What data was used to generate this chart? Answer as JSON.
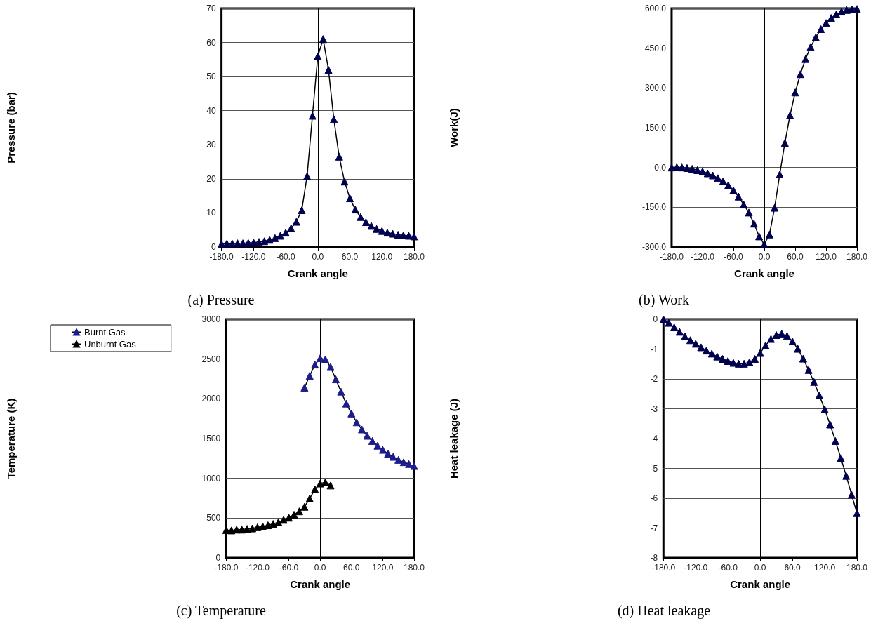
{
  "chart_data": [
    {
      "type": "line",
      "title": "(a) Pressure",
      "xlabel": "Crank angle",
      "ylabel": "Pressure (bar)",
      "marker": "triangle",
      "grid": "y",
      "legend": false,
      "xlim": [
        -180,
        180
      ],
      "xticks": [
        {
          "value": -180,
          "label": "-180.0"
        },
        {
          "value": -120,
          "label": "-120.0"
        },
        {
          "value": -60,
          "label": "-60.0"
        },
        {
          "value": 0,
          "label": "0.0"
        },
        {
          "value": 60,
          "label": "60.0"
        },
        {
          "value": 120,
          "label": "120.0"
        },
        {
          "value": 180,
          "label": "180.0"
        }
      ],
      "ylim": [
        0,
        70
      ],
      "yticks": [
        0,
        10,
        20,
        30,
        40,
        50,
        60,
        70
      ],
      "x": [
        -180,
        -170,
        -160,
        -150,
        -140,
        -130,
        -120,
        -110,
        -100,
        -90,
        -80,
        -70,
        -60,
        -50,
        -40,
        -30,
        -20,
        -10,
        0,
        10,
        20,
        30,
        40,
        50,
        60,
        70,
        80,
        90,
        100,
        110,
        120,
        130,
        140,
        150,
        160,
        170,
        180
      ],
      "series": [
        {
          "color": "#000050",
          "values": [
            0.9,
            1.0,
            1.0,
            1.1,
            1.1,
            1.2,
            1.3,
            1.5,
            1.7,
            2.1,
            2.6,
            3.3,
            4.2,
            5.5,
            7.4,
            10.8,
            20.8,
            38.5,
            56.0,
            61.0,
            52.0,
            37.5,
            26.5,
            19.2,
            14.3,
            11.0,
            8.8,
            7.3,
            6.2,
            5.3,
            4.7,
            4.2,
            3.9,
            3.6,
            3.4,
            3.3,
            3.1
          ]
        }
      ]
    },
    {
      "type": "line",
      "title": "(b) Work",
      "xlabel": "Crank angle",
      "ylabel": "Work(J)",
      "marker": "triangle",
      "grid": "y",
      "legend": false,
      "xlim": [
        -180,
        180
      ],
      "xticks": [
        {
          "value": -180,
          "label": "-180.0"
        },
        {
          "value": -120,
          "label": "-120.0"
        },
        {
          "value": -60,
          "label": "-60.0"
        },
        {
          "value": 0,
          "label": "0.0"
        },
        {
          "value": 60,
          "label": "60.0"
        },
        {
          "value": 120,
          "label": "120.0"
        },
        {
          "value": 180,
          "label": "180.0"
        }
      ],
      "ylim": [
        -300,
        600
      ],
      "yticks": [
        {
          "value": -300,
          "label": "-300.0"
        },
        {
          "value": -150,
          "label": "-150.0"
        },
        {
          "value": 0,
          "label": "0.0"
        },
        {
          "value": 150,
          "label": "150.0"
        },
        {
          "value": 300,
          "label": "300.0"
        },
        {
          "value": 450,
          "label": "450.0"
        },
        {
          "value": 600,
          "label": "600.0"
        }
      ],
      "x": [
        -180,
        -170,
        -160,
        -150,
        -140,
        -130,
        -120,
        -110,
        -100,
        -90,
        -80,
        -70,
        -60,
        -50,
        -40,
        -30,
        -20,
        -10,
        0,
        10,
        20,
        30,
        40,
        50,
        60,
        70,
        80,
        90,
        100,
        110,
        120,
        130,
        140,
        150,
        160,
        170,
        180
      ],
      "series": [
        {
          "color": "#000050",
          "values": [
            0,
            1,
            0,
            -2,
            -5,
            -10,
            -15,
            -22,
            -30,
            -40,
            -52,
            -67,
            -86,
            -110,
            -140,
            -170,
            -212,
            -260,
            -290,
            -253,
            -152,
            -26,
            93,
            197,
            283,
            352,
            409,
            455,
            491,
            522,
            545,
            564,
            578,
            588,
            594,
            597,
            598
          ]
        }
      ]
    },
    {
      "type": "line",
      "title": "(c) Temperature",
      "xlabel": "Crank angle",
      "ylabel": "Temperature (K)",
      "marker": "triangle",
      "grid": "y",
      "legend": "top left",
      "xlim": [
        -180,
        180
      ],
      "xticks": [
        {
          "value": -180,
          "label": "-180.0"
        },
        {
          "value": -120,
          "label": "-120.0"
        },
        {
          "value": -60,
          "label": "-60.0"
        },
        {
          "value": 0,
          "label": "0.0"
        },
        {
          "value": 60,
          "label": "60.0"
        },
        {
          "value": 120,
          "label": "120.0"
        },
        {
          "value": 180,
          "label": "180.0"
        }
      ],
      "ylim": [
        0,
        3000
      ],
      "yticks": [
        0,
        500,
        1000,
        1500,
        2000,
        2500,
        3000
      ],
      "series": [
        {
          "name": "Burnt Gas",
          "color": "#1c1c8c",
          "x": [
            -30,
            -20,
            -10,
            0,
            10,
            20,
            30,
            40,
            50,
            60,
            70,
            80,
            90,
            100,
            110,
            120,
            130,
            140,
            150,
            160,
            170,
            180
          ],
          "values": [
            2140,
            2290,
            2430,
            2510,
            2495,
            2400,
            2245,
            2090,
            1940,
            1815,
            1705,
            1615,
            1535,
            1470,
            1410,
            1358,
            1310,
            1270,
            1232,
            1203,
            1180,
            1155
          ]
        },
        {
          "name": "Unburnt Gas",
          "color": "#000000",
          "x": [
            -180,
            -170,
            -160,
            -150,
            -140,
            -130,
            -120,
            -110,
            -100,
            -90,
            -80,
            -70,
            -60,
            -50,
            -40,
            -30,
            -20,
            -10,
            0,
            10,
            20
          ],
          "values": [
            350,
            345,
            355,
            355,
            365,
            370,
            385,
            395,
            410,
            427,
            448,
            478,
            505,
            543,
            585,
            642,
            747,
            862,
            935,
            950,
            910
          ]
        }
      ]
    },
    {
      "type": "line",
      "title": "(d) Heat leakage",
      "xlabel": "Crank angle",
      "ylabel": "Heat leakage (J)",
      "marker": "triangle",
      "grid": "y",
      "legend": false,
      "xlim": [
        -180,
        180
      ],
      "xticks": [
        {
          "value": -180,
          "label": "-180.0"
        },
        {
          "value": -120,
          "label": "-120.0"
        },
        {
          "value": -60,
          "label": "-60.0"
        },
        {
          "value": 0,
          "label": "0.0"
        },
        {
          "value": 60,
          "label": "60.0"
        },
        {
          "value": 120,
          "label": "120.0"
        },
        {
          "value": 180,
          "label": "180.0"
        }
      ],
      "ylim": [
        -8,
        0
      ],
      "yticks": [
        -8,
        -7,
        -6,
        -5,
        -4,
        -3,
        -2,
        -1,
        0
      ],
      "x": [
        -180,
        -170,
        -160,
        -150,
        -140,
        -130,
        -120,
        -110,
        -100,
        -90,
        -80,
        -70,
        -60,
        -50,
        -40,
        -30,
        -20,
        -10,
        0,
        10,
        20,
        30,
        40,
        50,
        60,
        70,
        80,
        90,
        100,
        110,
        120,
        130,
        140,
        150,
        160,
        170,
        180
      ],
      "series": [
        {
          "color": "#000050",
          "values": [
            0,
            -0.12,
            -0.27,
            -0.42,
            -0.57,
            -0.7,
            -0.82,
            -0.94,
            -1.05,
            -1.15,
            -1.25,
            -1.33,
            -1.4,
            -1.46,
            -1.49,
            -1.49,
            -1.44,
            -1.33,
            -1.13,
            -0.88,
            -0.66,
            -0.53,
            -0.49,
            -0.56,
            -0.74,
            -0.99,
            -1.32,
            -1.7,
            -2.1,
            -2.55,
            -3.02,
            -3.53,
            -4.08,
            -4.65,
            -5.25,
            -5.88,
            -6.5
          ]
        }
      ]
    }
  ]
}
